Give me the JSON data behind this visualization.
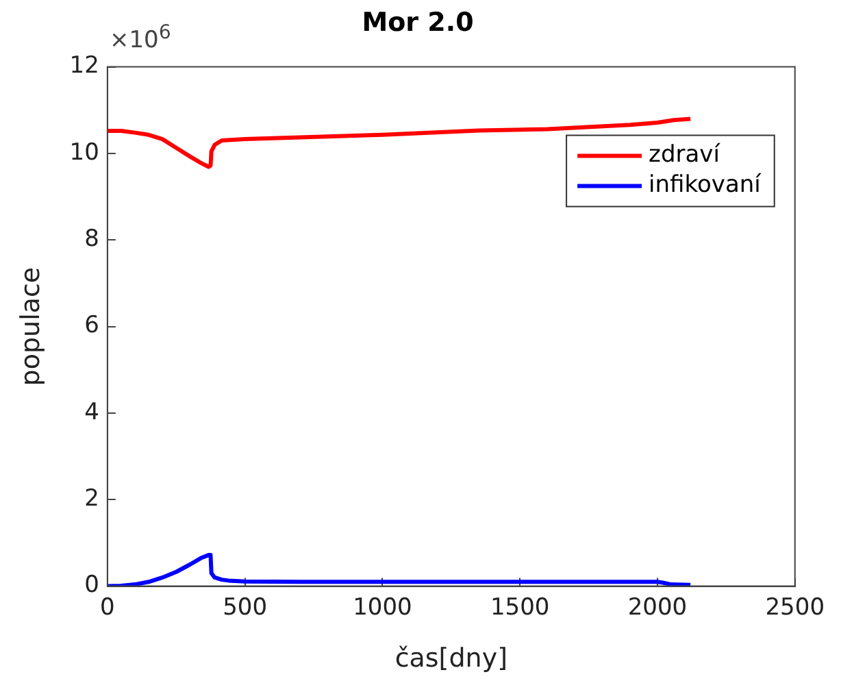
{
  "chart_data": {
    "type": "line",
    "title": "Mor 2.0",
    "xlabel": "čas[dny]",
    "ylabel": "populace",
    "annotations": [
      "×10$^{6}$"
    ],
    "xlim": [
      0,
      2500
    ],
    "xticks": [
      0,
      500,
      1000,
      1500,
      2000,
      2500
    ],
    "ylim": [
      0,
      12
    ],
    "yticks": [
      0,
      2,
      4,
      6,
      8,
      10,
      12
    ],
    "grid": false,
    "legend": "top right",
    "marker": "none",
    "line_style": "solid",
    "series": [
      {
        "name": "zdraví",
        "color": "#ff0000",
        "x": [
          0,
          50,
          100,
          150,
          200,
          250,
          300,
          340,
          368,
          375,
          378,
          390,
          416,
          500,
          700,
          1000,
          1350,
          1600,
          1780,
          1900,
          2000,
          2060,
          2120
        ],
        "values": [
          10.52,
          10.52,
          10.48,
          10.43,
          10.33,
          10.13,
          9.93,
          9.78,
          9.69,
          9.72,
          10.05,
          10.2,
          10.3,
          10.33,
          10.37,
          10.43,
          10.53,
          10.56,
          10.62,
          10.66,
          10.71,
          10.77,
          10.8
        ]
      },
      {
        "name": "infikovaní",
        "color": "#0000ff",
        "x": [
          0,
          50,
          100,
          150,
          200,
          250,
          300,
          340,
          368,
          375,
          378,
          390,
          416,
          440,
          500,
          700,
          1000,
          1500,
          2000,
          2020,
          2050,
          2120
        ],
        "values": [
          0,
          0.01,
          0.04,
          0.1,
          0.2,
          0.33,
          0.5,
          0.65,
          0.72,
          0.72,
          0.3,
          0.2,
          0.15,
          0.13,
          0.11,
          0.1,
          0.1,
          0.1,
          0.1,
          0.08,
          0.04,
          0.03
        ]
      }
    ]
  }
}
